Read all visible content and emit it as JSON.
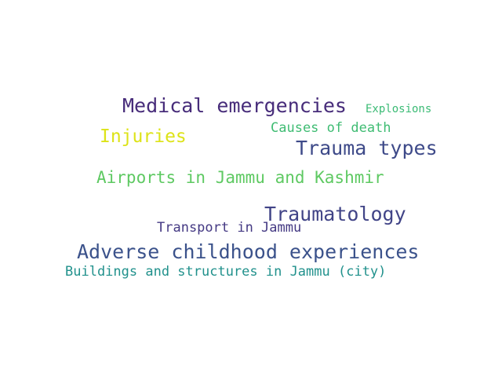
{
  "word_cloud": {
    "words": [
      {
        "text": "Medical emergencies",
        "color": "#472c7a"
      },
      {
        "text": "Explosions",
        "color": "#3bbb75"
      },
      {
        "text": "Causes of death",
        "color": "#3fbc73"
      },
      {
        "text": "Injuries",
        "color": "#dde318"
      },
      {
        "text": "Trauma types",
        "color": "#3e4a89"
      },
      {
        "text": "Airports in Jammu and Kashmir",
        "color": "#5ec962"
      },
      {
        "text": "Traumatology",
        "color": "#414487"
      },
      {
        "text": "Transport in Jammu",
        "color": "#443983"
      },
      {
        "text": "Adverse childhood experiences",
        "color": "#3b528b"
      },
      {
        "text": "Buildings and structures in Jammu (city)",
        "color": "#21918c"
      }
    ]
  }
}
